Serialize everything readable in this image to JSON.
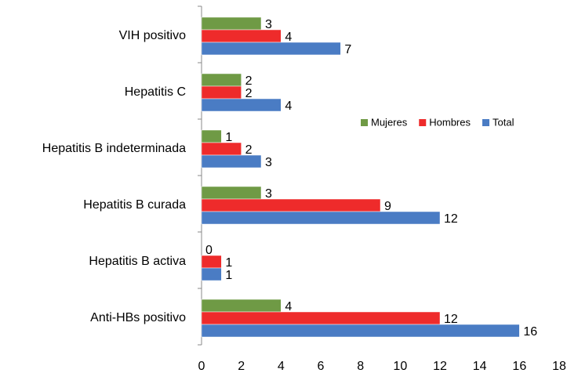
{
  "chart_data": {
    "type": "hbar",
    "categories": [
      "VIH positivo",
      "Hepatitis C",
      "Hepatitis B indeterminada",
      "Hepatitis B curada",
      "Hepatitis B activa",
      "Anti-HBs positivo"
    ],
    "series": [
      {
        "name": "Mujeres",
        "color": "#6f9a45",
        "values": [
          3,
          2,
          1,
          3,
          0,
          4
        ]
      },
      {
        "name": "Hombres",
        "color": "#ee2b2b",
        "values": [
          4,
          2,
          2,
          9,
          1,
          12
        ]
      },
      {
        "name": "Total",
        "color": "#4a7cc4",
        "values": [
          7,
          4,
          3,
          12,
          1,
          16
        ]
      }
    ],
    "xlim": [
      0,
      18
    ],
    "xticks": [
      0,
      2,
      4,
      6,
      8,
      10,
      12,
      14,
      16,
      18
    ]
  }
}
